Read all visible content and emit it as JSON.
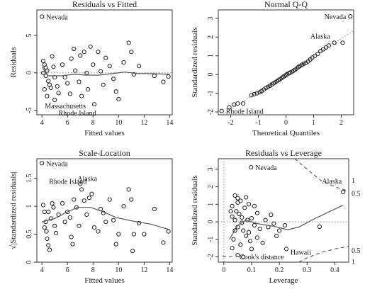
{
  "chart_data": [
    {
      "type": "scatter",
      "title": "Residuals vs Fitted",
      "xlabel": "Fitted values",
      "ylabel": "Residuals",
      "xlim": [
        3.6,
        14.2
      ],
      "ylim": [
        -5.6,
        8.4
      ],
      "xticks": [
        4,
        6,
        8,
        10,
        12,
        14
      ],
      "yticks": [
        -5,
        0,
        5
      ],
      "points": [
        [
          4.0,
          7.5
        ],
        [
          4.1,
          1.6
        ],
        [
          4.2,
          1.1
        ],
        [
          4.3,
          0.7
        ],
        [
          4.4,
          0.3
        ],
        [
          4.3,
          -0.4
        ],
        [
          4.5,
          -1.1
        ],
        [
          4.6,
          -1.6
        ],
        [
          4.2,
          -2.2
        ],
        [
          4.4,
          -3.1
        ],
        [
          4.7,
          -2.0
        ],
        [
          4.1,
          0.0
        ],
        [
          4.8,
          2.2
        ],
        [
          4.9,
          0.8
        ],
        [
          5.0,
          -0.6
        ],
        [
          5.2,
          -1.8
        ],
        [
          5.3,
          -2.7
        ],
        [
          5.0,
          -3.6
        ],
        [
          5.6,
          1.1
        ],
        [
          5.8,
          -0.6
        ],
        [
          6.0,
          -1.4
        ],
        [
          6.3,
          1.9
        ],
        [
          6.5,
          3.2
        ],
        [
          6.6,
          0.3
        ],
        [
          6.9,
          -1.2
        ],
        [
          7.0,
          2.3
        ],
        [
          7.3,
          2.8
        ],
        [
          7.5,
          0.0
        ],
        [
          7.6,
          -2.2
        ],
        [
          7.8,
          3.5
        ],
        [
          8.0,
          1.1
        ],
        [
          8.1,
          -4.2
        ],
        [
          8.4,
          2.8
        ],
        [
          8.6,
          0.2
        ],
        [
          8.8,
          -1.6
        ],
        [
          9.0,
          2.0
        ],
        [
          9.3,
          0.9
        ],
        [
          9.6,
          -0.8
        ],
        [
          9.8,
          -2.5
        ],
        [
          10.0,
          -3.5
        ],
        [
          10.4,
          1.4
        ],
        [
          10.8,
          4.0
        ],
        [
          11.0,
          2.8
        ],
        [
          11.2,
          -0.2
        ],
        [
          11.6,
          0.9
        ],
        [
          12.8,
          -0.4
        ],
        [
          13.5,
          -1.2
        ],
        [
          13.9,
          -0.5
        ],
        [
          7.1,
          -3.1
        ],
        [
          6.2,
          -2.8
        ]
      ],
      "smooth": [
        [
          4.0,
          0.8
        ],
        [
          4.5,
          -0.4
        ],
        [
          5.5,
          -0.4
        ],
        [
          6.5,
          -0.2
        ],
        [
          7.5,
          -0.3
        ],
        [
          8.5,
          -0.3
        ],
        [
          9.5,
          -0.1
        ],
        [
          10.5,
          0.1
        ],
        [
          11.5,
          -0.1
        ],
        [
          12.5,
          -0.1
        ],
        [
          14.0,
          -0.2
        ]
      ],
      "labels": [
        {
          "text": "Nevada",
          "x": 4.0,
          "y": 7.5
        },
        {
          "text": "Massachusetts",
          "x": 5.0,
          "y": -3.6
        },
        {
          "text": "Rhode Island",
          "x": 5.3,
          "y": -4.2
        }
      ]
    },
    {
      "type": "scatter",
      "title": "Normal Q-Q",
      "xlabel": "Theoretical Quantiles",
      "ylabel": "Standardized residuals",
      "xlim": [
        -2.45,
        2.45
      ],
      "ylim": [
        -2.15,
        3.45
      ],
      "xticks": [
        -2,
        -1,
        0,
        1,
        2
      ],
      "yticks": [
        -2,
        -1,
        0,
        1,
        2,
        3
      ],
      "points": [
        [
          -2.33,
          -1.95
        ],
        [
          -2.05,
          -1.75
        ],
        [
          -1.88,
          -1.6
        ],
        [
          -1.75,
          -1.55
        ],
        [
          -1.55,
          -1.55
        ],
        [
          -1.25,
          -1.1
        ],
        [
          -1.15,
          -1.05
        ],
        [
          -1.05,
          -1.0
        ],
        [
          -0.95,
          -0.95
        ],
        [
          -0.88,
          -0.88
        ],
        [
          -0.8,
          -0.8
        ],
        [
          -0.72,
          -0.72
        ],
        [
          -0.65,
          -0.66
        ],
        [
          -0.58,
          -0.6
        ],
        [
          -0.51,
          -0.53
        ],
        [
          -0.45,
          -0.47
        ],
        [
          -0.39,
          -0.42
        ],
        [
          -0.33,
          -0.36
        ],
        [
          -0.27,
          -0.3
        ],
        [
          -0.21,
          -0.24
        ],
        [
          -0.15,
          -0.18
        ],
        [
          -0.1,
          -0.12
        ],
        [
          -0.05,
          -0.08
        ],
        [
          0.0,
          -0.03
        ],
        [
          0.05,
          0.02
        ],
        [
          0.1,
          0.06
        ],
        [
          0.15,
          0.1
        ],
        [
          0.21,
          0.14
        ],
        [
          0.27,
          0.2
        ],
        [
          0.33,
          0.26
        ],
        [
          0.39,
          0.32
        ],
        [
          0.45,
          0.4
        ],
        [
          0.51,
          0.46
        ],
        [
          0.58,
          0.52
        ],
        [
          0.65,
          0.58
        ],
        [
          0.72,
          0.62
        ],
        [
          0.8,
          0.7
        ],
        [
          0.88,
          0.8
        ],
        [
          0.95,
          0.9
        ],
        [
          1.05,
          1.0
        ],
        [
          1.15,
          1.1
        ],
        [
          1.25,
          1.25
        ],
        [
          1.35,
          1.35
        ],
        [
          1.45,
          1.45
        ],
        [
          1.55,
          1.55
        ],
        [
          1.75,
          1.7
        ],
        [
          2.05,
          1.7
        ],
        [
          2.33,
          3.1
        ]
      ],
      "ref_line": [
        [
          -2.45,
          -2.3
        ],
        [
          2.45,
          2.35
        ]
      ],
      "labels": [
        {
          "text": "Nevada",
          "x": 2.33,
          "y": 3.1
        },
        {
          "text": "Alaska",
          "x": 1.75,
          "y": 1.7
        },
        {
          "text": "Rhode Island",
          "x": -2.33,
          "y": -1.95
        }
      ]
    },
    {
      "type": "scatter",
      "title": "Scale-Location",
      "xlabel": "Fitted values",
      "ylabel": "√|Standardized residuals|",
      "xlim": [
        3.6,
        14.2
      ],
      "ylim": [
        0.0,
        1.85
      ],
      "xticks": [
        4,
        6,
        8,
        10,
        12,
        14
      ],
      "yticks": [
        0.0,
        0.5,
        1.0,
        1.5
      ],
      "points": [
        [
          4.0,
          1.77
        ],
        [
          4.1,
          1.02
        ],
        [
          4.2,
          0.9
        ],
        [
          4.3,
          0.72
        ],
        [
          4.35,
          0.55
        ],
        [
          4.4,
          0.42
        ],
        [
          4.5,
          0.3
        ],
        [
          4.6,
          0.22
        ],
        [
          4.2,
          0.62
        ],
        [
          4.5,
          0.9
        ],
        [
          4.7,
          0.78
        ],
        [
          4.8,
          1.05
        ],
        [
          4.9,
          0.98
        ],
        [
          5.0,
          0.65
        ],
        [
          5.1,
          0.52
        ],
        [
          5.3,
          0.85
        ],
        [
          5.6,
          1.05
        ],
        [
          5.8,
          0.72
        ],
        [
          6.0,
          0.9
        ],
        [
          6.2,
          0.8
        ],
        [
          6.3,
          0.45
        ],
        [
          6.5,
          1.12
        ],
        [
          6.7,
          0.98
        ],
        [
          6.9,
          0.65
        ],
        [
          7.1,
          1.3
        ],
        [
          7.3,
          1.1
        ],
        [
          7.5,
          0.85
        ],
        [
          7.7,
          1.15
        ],
        [
          7.9,
          1.22
        ],
        [
          8.1,
          0.62
        ],
        [
          8.4,
          0.55
        ],
        [
          8.6,
          0.95
        ],
        [
          8.8,
          0.88
        ],
        [
          9.0,
          0.72
        ],
        [
          9.3,
          1.12
        ],
        [
          9.6,
          0.75
        ],
        [
          9.8,
          0.32
        ],
        [
          10.0,
          0.5
        ],
        [
          10.4,
          1.0
        ],
        [
          10.8,
          1.3
        ],
        [
          11.0,
          1.12
        ],
        [
          11.2,
          0.5
        ],
        [
          11.6,
          0.7
        ],
        [
          12.0,
          0.5
        ],
        [
          12.8,
          0.95
        ],
        [
          13.5,
          0.35
        ],
        [
          13.9,
          0.55
        ],
        [
          7.0,
          1.4
        ],
        [
          6.4,
          0.32
        ],
        [
          11.1,
          0.2
        ]
      ],
      "smooth": [
        [
          4.0,
          0.72
        ],
        [
          5.0,
          0.78
        ],
        [
          6.0,
          0.9
        ],
        [
          6.8,
          0.98
        ],
        [
          7.8,
          0.98
        ],
        [
          8.8,
          0.9
        ],
        [
          9.8,
          0.8
        ],
        [
          11.0,
          0.74
        ],
        [
          12.5,
          0.68
        ],
        [
          14.0,
          0.58
        ]
      ],
      "labels": [
        {
          "text": "Nevada",
          "x": 4.0,
          "y": 1.77
        },
        {
          "text": "Rhode Island",
          "x": 5.0,
          "y": 1.4
        },
        {
          "text": "Alaska",
          "x": 7.0,
          "y": 1.4
        }
      ]
    },
    {
      "type": "scatter",
      "title": "Residuals vs Leverage",
      "xlabel": "Leverage",
      "ylabel": "Standardized residuals",
      "xlim": [
        -0.02,
        0.45
      ],
      "ylim": [
        -2.3,
        3.6
      ],
      "xticks": [
        0.0,
        0.1,
        0.2,
        0.3,
        0.4
      ],
      "yticks": [
        -2,
        -1,
        0,
        1,
        2,
        3
      ],
      "points": [
        [
          0.098,
          3.12
        ],
        [
          0.04,
          1.5
        ],
        [
          0.05,
          1.35
        ],
        [
          0.06,
          1.2
        ],
        [
          0.03,
          0.9
        ],
        [
          0.045,
          0.6
        ],
        [
          0.055,
          0.45
        ],
        [
          0.03,
          0.3
        ],
        [
          0.04,
          0.1
        ],
        [
          0.065,
          -0.05
        ],
        [
          0.05,
          -0.3
        ],
        [
          0.07,
          -0.5
        ],
        [
          0.08,
          -0.8
        ],
        [
          0.035,
          -1.0
        ],
        [
          0.06,
          -1.3
        ],
        [
          0.09,
          -0.6
        ],
        [
          0.1,
          0.2
        ],
        [
          0.11,
          -0.2
        ],
        [
          0.12,
          0.5
        ],
        [
          0.13,
          -0.4
        ],
        [
          0.15,
          0.1
        ],
        [
          0.16,
          -0.3
        ],
        [
          0.18,
          -0.1
        ],
        [
          0.2,
          -0.5
        ],
        [
          0.22,
          -0.2
        ],
        [
          0.09,
          1.0
        ],
        [
          0.08,
          1.4
        ],
        [
          0.075,
          0.8
        ],
        [
          0.05,
          1.1
        ],
        [
          0.025,
          0.6
        ],
        [
          0.095,
          -1.1
        ],
        [
          0.1,
          -1.55
        ],
        [
          0.12,
          -0.9
        ],
        [
          0.14,
          -1.2
        ],
        [
          0.05,
          -1.9
        ],
        [
          0.07,
          -2.0
        ],
        [
          0.03,
          -1.5
        ],
        [
          0.225,
          -1.55
        ],
        [
          0.345,
          -0.28
        ],
        [
          0.43,
          1.7
        ],
        [
          0.065,
          0.25
        ],
        [
          0.085,
          0.1
        ],
        [
          0.11,
          0.9
        ],
        [
          0.17,
          0.4
        ],
        [
          0.19,
          -0.8
        ],
        [
          0.04,
          -0.5
        ]
      ],
      "smooth": [
        [
          0.02,
          -1.0
        ],
        [
          0.05,
          -0.2
        ],
        [
          0.08,
          0.1
        ],
        [
          0.12,
          -0.1
        ],
        [
          0.18,
          -0.25
        ],
        [
          0.23,
          -0.45
        ],
        [
          0.27,
          -0.3
        ],
        [
          0.33,
          0.2
        ],
        [
          0.43,
          0.95
        ]
      ],
      "cook_pos": [
        [
          0.255,
          3.6
        ],
        [
          0.3,
          3.0
        ],
        [
          0.35,
          2.35
        ],
        [
          0.4,
          2.0
        ],
        [
          0.45,
          1.75
        ]
      ],
      "cook_neg": [
        [
          0.27,
          -2.3
        ],
        [
          0.3,
          -2.05
        ],
        [
          0.35,
          -1.75
        ],
        [
          0.4,
          -1.55
        ],
        [
          0.45,
          -1.4
        ]
      ],
      "cook_levels_right": [
        {
          "text": "1",
          "y": 2.35
        },
        {
          "text": "0.5",
          "y": 1.6
        },
        {
          "text": "0.5",
          "y": -1.65
        },
        {
          "text": "1",
          "y": -2.3
        }
      ],
      "cook_label": "Cook's distance",
      "labels": [
        {
          "text": "Nevada",
          "x": 0.098,
          "y": 3.12
        },
        {
          "text": "Alaska",
          "x": 0.43,
          "y": 1.7
        },
        {
          "text": "Hawaii",
          "x": 0.225,
          "y": -1.55
        }
      ]
    }
  ]
}
